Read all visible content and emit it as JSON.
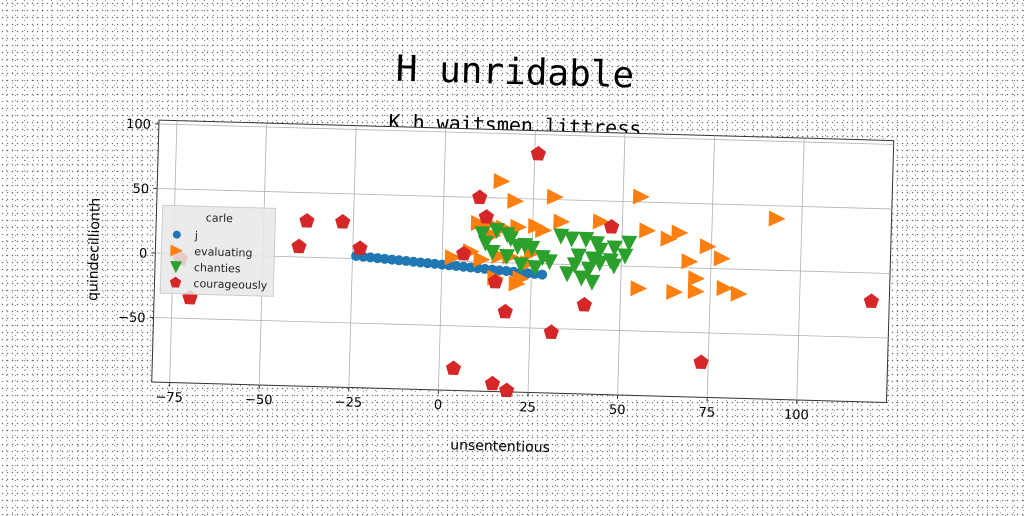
{
  "chart_data": {
    "type": "scatter",
    "title": "H unridable",
    "subtitle": "K h waitsmen littress",
    "xlabel": "unsententious",
    "ylabel": "quindecillionth",
    "xlim": [
      -80,
      125
    ],
    "ylim": [
      -100,
      103
    ],
    "xticks": [
      -75,
      -50,
      -25,
      0,
      25,
      50,
      75,
      100
    ],
    "yticks": [
      -50,
      0,
      50,
      100
    ],
    "grid": true,
    "legend": {
      "title": "carle",
      "placement": "upper left"
    },
    "series": [
      {
        "name": "j",
        "color": "#1f77b4",
        "marker": "circle",
        "points": [
          [
            -24,
            2
          ],
          [
            -22,
            1.6
          ],
          [
            -20,
            1.2
          ],
          [
            -18,
            0.8
          ],
          [
            -16,
            0.4
          ],
          [
            -14,
            0
          ],
          [
            -12,
            -0.4
          ],
          [
            -10,
            -0.8
          ],
          [
            -8,
            -1.2
          ],
          [
            -6,
            -1.6
          ],
          [
            -4,
            -2
          ],
          [
            -2,
            -2.4
          ],
          [
            0,
            -2.8
          ],
          [
            2,
            -3.2
          ],
          [
            4,
            -3.6
          ],
          [
            6,
            -4
          ],
          [
            8,
            -4.4
          ],
          [
            10,
            -4.8
          ],
          [
            12,
            -5.2
          ],
          [
            14,
            -5.6
          ],
          [
            16,
            -6
          ],
          [
            18,
            -6.4
          ],
          [
            20,
            -6.8
          ],
          [
            22,
            -7.2
          ],
          [
            24,
            -7.6
          ],
          [
            26,
            -8
          ],
          [
            28,
            -8.4
          ]
        ]
      },
      {
        "name": "evaluating",
        "color": "#ff7f0e",
        "marker": "triangle-right",
        "points": [
          [
            16,
            63
          ],
          [
            20,
            48
          ],
          [
            31,
            52
          ],
          [
            33,
            33
          ],
          [
            13,
            30
          ],
          [
            10,
            30
          ],
          [
            14,
            21
          ],
          [
            17,
            27
          ],
          [
            21,
            28
          ],
          [
            26,
            29
          ],
          [
            28,
            26
          ],
          [
            25,
            8
          ],
          [
            3,
            3
          ],
          [
            8,
            8
          ],
          [
            11,
            2
          ],
          [
            16,
            5
          ],
          [
            19,
            5
          ],
          [
            24,
            0
          ],
          [
            22,
            -12
          ],
          [
            15,
            -12
          ],
          [
            21,
            -16
          ],
          [
            44,
            34
          ],
          [
            55,
            54
          ],
          [
            57,
            28
          ],
          [
            63,
            22
          ],
          [
            66,
            27
          ],
          [
            74,
            17
          ],
          [
            69,
            5
          ],
          [
            78,
            8
          ],
          [
            71,
            -8
          ],
          [
            71,
            -18
          ],
          [
            79,
            -15
          ],
          [
            55,
            -17
          ],
          [
            65,
            -19
          ],
          [
            83,
            -19
          ],
          [
            93,
            40
          ]
        ]
      },
      {
        "name": "chanties",
        "color": "#2ca02c",
        "marker": "triangle-down",
        "points": [
          [
            11,
            22
          ],
          [
            15,
            25
          ],
          [
            18,
            22
          ],
          [
            12,
            15
          ],
          [
            19,
            19
          ],
          [
            21,
            13
          ],
          [
            25,
            12
          ],
          [
            33,
            22
          ],
          [
            36,
            20
          ],
          [
            40,
            20
          ],
          [
            43,
            17
          ],
          [
            14,
            8
          ],
          [
            18,
            5
          ],
          [
            28,
            5
          ],
          [
            30,
            2
          ],
          [
            38,
            7
          ],
          [
            42,
            5
          ],
          [
            44,
            2
          ],
          [
            37,
            0
          ],
          [
            41,
            -3
          ],
          [
            47,
            4
          ],
          [
            48,
            0
          ],
          [
            22,
            -1
          ],
          [
            26,
            -3
          ],
          [
            35,
            -7
          ],
          [
            39,
            -10
          ],
          [
            42,
            -13
          ],
          [
            48,
            14
          ],
          [
            51,
            8
          ],
          [
            52,
            18
          ],
          [
            44,
            12
          ],
          [
            23,
            14
          ]
        ]
      },
      {
        "name": "courageously",
        "color": "#d62728",
        "marker": "pentagon",
        "points": [
          [
            26,
            85
          ],
          [
            10,
            50
          ],
          [
            12,
            35
          ],
          [
            47,
            30
          ],
          [
            -23,
            8
          ],
          [
            -40,
            8
          ],
          [
            -38,
            28
          ],
          [
            -28,
            28
          ],
          [
            -73,
            -4
          ],
          [
            -70,
            -34
          ],
          [
            15,
            -15
          ],
          [
            18,
            -38
          ],
          [
            31,
            -53
          ],
          [
            40,
            -31
          ],
          [
            4,
            -83
          ],
          [
            15,
            -94
          ],
          [
            19,
            -99
          ],
          [
            73,
            -73
          ],
          [
            120,
            -22
          ],
          [
            6,
            6
          ]
        ]
      }
    ]
  }
}
